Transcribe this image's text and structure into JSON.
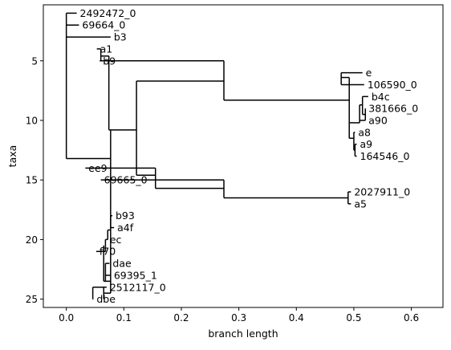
{
  "chart_data": {
    "type": "phylogenetic-tree",
    "xlabel": "branch length",
    "ylabel": "taxa",
    "xlim": [
      -0.04,
      0.655
    ],
    "ylim": [
      25.7,
      0.3
    ],
    "x_ticks": [
      0.0,
      0.1,
      0.2,
      0.3,
      0.4,
      0.5,
      0.6
    ],
    "y_ticks": [
      5,
      10,
      15,
      20,
      25
    ],
    "x_tick_labels": [
      "0.0",
      "0.1",
      "0.2",
      "0.3",
      "0.4",
      "0.5",
      "0.6"
    ],
    "y_tick_labels": [
      "5",
      "10",
      "15",
      "20",
      "25"
    ],
    "grid": false,
    "line_color": "#000000",
    "leaves": [
      {
        "name": "2492472_0",
        "x": 0.018,
        "y": 1
      },
      {
        "name": "69664_0",
        "x": 0.022,
        "y": 2
      },
      {
        "name": "b3",
        "x": 0.077,
        "y": 3
      },
      {
        "name": "a1",
        "x": 0.053,
        "y": 4
      },
      {
        "name": "b9",
        "x": 0.058,
        "y": 5
      },
      {
        "name": "e",
        "x": 0.515,
        "y": 6
      },
      {
        "name": "106590_0",
        "x": 0.518,
        "y": 7
      },
      {
        "name": "b4c",
        "x": 0.525,
        "y": 8
      },
      {
        "name": "381666_0",
        "x": 0.52,
        "y": 9
      },
      {
        "name": "a90",
        "x": 0.52,
        "y": 10
      },
      {
        "name": "a8",
        "x": 0.502,
        "y": 11
      },
      {
        "name": "a9",
        "x": 0.505,
        "y": 12
      },
      {
        "name": "164546_0",
        "x": 0.505,
        "y": 13
      },
      {
        "name": "ee9",
        "x": 0.033,
        "y": 14
      },
      {
        "name": "69665_0",
        "x": 0.06,
        "y": 15
      },
      {
        "name": "2027911_0",
        "x": 0.495,
        "y": 16
      },
      {
        "name": "a5",
        "x": 0.495,
        "y": 17
      },
      {
        "name": "b93",
        "x": 0.08,
        "y": 18
      },
      {
        "name": "a4f",
        "x": 0.083,
        "y": 19
      },
      {
        "name": "ec",
        "x": 0.07,
        "y": 20
      },
      {
        "name": "f70",
        "x": 0.052,
        "y": 21
      },
      {
        "name": "dae",
        "x": 0.075,
        "y": 22
      },
      {
        "name": "69395_1",
        "x": 0.077,
        "y": 23
      },
      {
        "name": "2512117_0",
        "x": 0.07,
        "y": 24
      },
      {
        "name": "dbe",
        "x": 0.047,
        "y": 25
      }
    ],
    "edges": [
      {
        "type": "v",
        "x": 0.0,
        "y1": 1,
        "y2": 13.2
      },
      {
        "type": "h",
        "y": 1,
        "x1": 0.0,
        "x2": 0.018
      },
      {
        "type": "h",
        "y": 2,
        "x1": 0.0,
        "x2": 0.022
      },
      {
        "type": "h",
        "y": 3,
        "x1": 0.0,
        "x2": 0.077
      },
      {
        "type": "h",
        "y": 13.2,
        "x1": 0.0,
        "x2": 0.077
      },
      {
        "type": "v",
        "x": 0.077,
        "y1": 10.8,
        "y2": 24.5
      },
      {
        "type": "h",
        "y": 10.8,
        "x1": 0.077,
        "x2": 0.122
      },
      {
        "type": "v",
        "x": 0.122,
        "y1": 6.7,
        "y2": 14.6
      },
      {
        "type": "h",
        "y": 6.7,
        "x1": 0.122,
        "x2": 0.274
      },
      {
        "type": "h",
        "y": 14.6,
        "x1": 0.122,
        "x2": 0.155
      },
      {
        "type": "v",
        "x": 0.274,
        "y1": 5.0,
        "y2": 8.3
      },
      {
        "type": "h",
        "y": 5.0,
        "x1": 0.074,
        "x2": 0.274
      },
      {
        "type": "h",
        "y": 8.3,
        "x1": 0.274,
        "x2": 0.492
      },
      {
        "type": "v",
        "x": 0.074,
        "y1": 4.6,
        "y2": 10.8
      },
      {
        "type": "h",
        "y": 10.8,
        "x1": 0.074,
        "x2": 0.077
      },
      {
        "type": "v",
        "x": 0.06,
        "y1": 4.0,
        "y2": 5.0
      },
      {
        "type": "h",
        "y": 4.0,
        "x1": 0.053,
        "x2": 0.06
      },
      {
        "type": "h",
        "y": 5.0,
        "x1": 0.058,
        "x2": 0.074
      },
      {
        "type": "h",
        "y": 4.6,
        "x1": 0.06,
        "x2": 0.074
      },
      {
        "type": "v",
        "x": 0.492,
        "y1": 6.4,
        "y2": 10.2
      },
      {
        "type": "h",
        "y": 6.4,
        "x1": 0.478,
        "x2": 0.492
      },
      {
        "type": "v",
        "x": 0.478,
        "y1": 6.0,
        "y2": 7.0
      },
      {
        "type": "h",
        "y": 6.0,
        "x1": 0.478,
        "x2": 0.515
      },
      {
        "type": "h",
        "y": 7.0,
        "x1": 0.478,
        "x2": 0.518
      },
      {
        "type": "h",
        "y": 10.2,
        "x1": 0.492,
        "x2": 0.51
      },
      {
        "type": "v",
        "x": 0.51,
        "y1": 8.7,
        "y2": 10.2
      },
      {
        "type": "h",
        "y": 8.7,
        "x1": 0.51,
        "x2": 0.515
      },
      {
        "type": "v",
        "x": 0.515,
        "y1": 8.0,
        "y2": 9.5
      },
      {
        "type": "h",
        "y": 8.0,
        "x1": 0.515,
        "x2": 0.525
      },
      {
        "type": "v",
        "x": 0.52,
        "y1": 9.0,
        "y2": 10.0
      },
      {
        "type": "h",
        "y": 9.5,
        "x1": 0.515,
        "x2": 0.52
      },
      {
        "type": "h",
        "y": 9.0,
        "x1": 0.52,
        "x2": 0.52
      },
      {
        "type": "h",
        "y": 10.0,
        "x1": 0.51,
        "x2": 0.52
      },
      {
        "type": "h",
        "y": 11.5,
        "x1": 0.492,
        "x2": 0.5
      },
      {
        "type": "v",
        "x": 0.492,
        "y1": 10.2,
        "y2": 11.5
      },
      {
        "type": "v",
        "x": 0.5,
        "y1": 11.0,
        "y2": 12.5
      },
      {
        "type": "h",
        "y": 11.0,
        "x1": 0.5,
        "x2": 0.502
      },
      {
        "type": "h",
        "y": 12.5,
        "x1": 0.5,
        "x2": 0.502
      },
      {
        "type": "v",
        "x": 0.502,
        "y1": 12.0,
        "y2": 13.0
      },
      {
        "type": "h",
        "y": 12.0,
        "x1": 0.502,
        "x2": 0.505
      },
      {
        "type": "h",
        "y": 13.0,
        "x1": 0.502,
        "x2": 0.505
      },
      {
        "type": "v",
        "x": 0.155,
        "y1": 14.0,
        "y2": 15.7
      },
      {
        "type": "h",
        "y": 14.0,
        "x1": 0.033,
        "x2": 0.155
      },
      {
        "type": "h",
        "y": 15.7,
        "x1": 0.155,
        "x2": 0.274
      },
      {
        "type": "v",
        "x": 0.274,
        "y1": 15.0,
        "y2": 16.5
      },
      {
        "type": "h",
        "y": 15.0,
        "x1": 0.06,
        "x2": 0.274
      },
      {
        "type": "h",
        "y": 16.5,
        "x1": 0.274,
        "x2": 0.49
      },
      {
        "type": "v",
        "x": 0.49,
        "y1": 16.0,
        "y2": 17.0
      },
      {
        "type": "h",
        "y": 16.0,
        "x1": 0.49,
        "x2": 0.495
      },
      {
        "type": "h",
        "y": 17.0,
        "x1": 0.49,
        "x2": 0.495
      },
      {
        "type": "v",
        "x": 0.077,
        "y1": 18.0,
        "y2": 19.0
      },
      {
        "type": "h",
        "y": 18.0,
        "x1": 0.077,
        "x2": 0.08
      },
      {
        "type": "h",
        "y": 19.0,
        "x1": 0.077,
        "x2": 0.083
      },
      {
        "type": "v",
        "x": 0.072,
        "y1": 19.2,
        "y2": 20.0
      },
      {
        "type": "h",
        "y": 19.2,
        "x1": 0.072,
        "x2": 0.077
      },
      {
        "type": "h",
        "y": 20.0,
        "x1": 0.068,
        "x2": 0.072
      },
      {
        "type": "v",
        "x": 0.068,
        "y1": 20.0,
        "y2": 21.0
      },
      {
        "type": "h",
        "y": 21.0,
        "x1": 0.052,
        "x2": 0.068
      },
      {
        "type": "v",
        "x": 0.065,
        "y1": 20.5,
        "y2": 23.5
      },
      {
        "type": "h",
        "y": 22.0,
        "x1": 0.068,
        "x2": 0.075
      },
      {
        "type": "v",
        "x": 0.068,
        "y1": 22.0,
        "y2": 23.5
      },
      {
        "type": "h",
        "y": 23.0,
        "x1": 0.068,
        "x2": 0.077
      },
      {
        "type": "h",
        "y": 23.5,
        "x1": 0.065,
        "x2": 0.077
      },
      {
        "type": "v",
        "x": 0.065,
        "y1": 24.0,
        "y2": 25.0
      },
      {
        "type": "h",
        "y": 24.0,
        "x1": 0.046,
        "x2": 0.07
      },
      {
        "type": "h",
        "y": 24.5,
        "x1": 0.065,
        "x2": 0.077
      },
      {
        "type": "h",
        "y": 25.0,
        "x1": 0.046,
        "x2": 0.047
      },
      {
        "type": "v",
        "x": 0.046,
        "y1": 24.0,
        "y2": 25.0
      }
    ]
  }
}
